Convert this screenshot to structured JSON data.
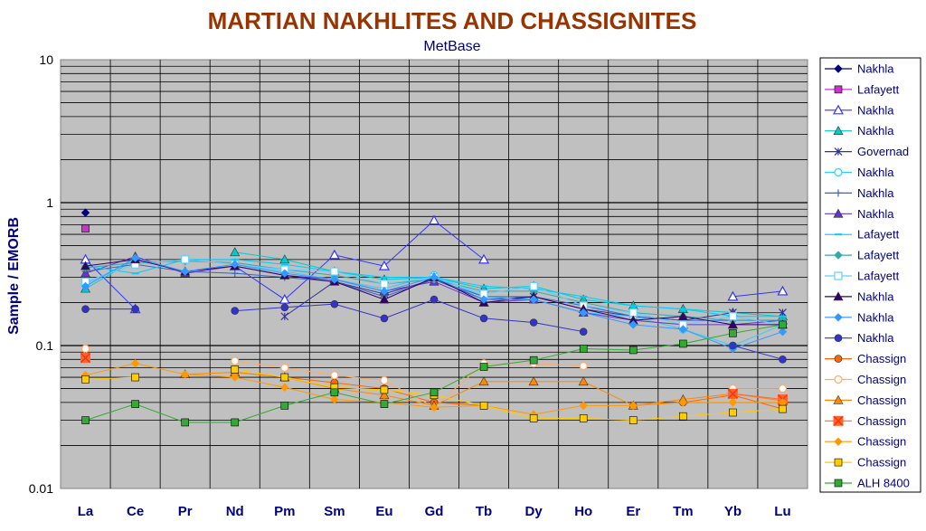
{
  "chart_data": {
    "type": "line",
    "title": "MARTIAN NAKHLITES AND CHASSIGNITES",
    "subtitle": "MetBase",
    "ylabel": "Sample / EMORB",
    "xlabel": "",
    "y_scale": "log",
    "ylim": [
      0.01,
      10
    ],
    "y_ticks": [
      "0.01",
      "0.1",
      "1",
      "10"
    ],
    "categories": [
      "La",
      "Ce",
      "Pr",
      "Nd",
      "Pm",
      "Sm",
      "Eu",
      "Gd",
      "Tb",
      "Dy",
      "Ho",
      "Er",
      "Tm",
      "Yb",
      "Lu"
    ],
    "grid": true,
    "legend_position": "right",
    "series": [
      {
        "name": "Nakhla",
        "color": "#000080",
        "marker": "diamond",
        "values": [
          0.85,
          null,
          null,
          null,
          null,
          null,
          null,
          null,
          null,
          null,
          null,
          null,
          null,
          null,
          null
        ]
      },
      {
        "name": "Lafayett",
        "color": "#cc33cc",
        "marker": "square",
        "values": [
          0.66,
          null,
          null,
          null,
          null,
          null,
          null,
          null,
          null,
          null,
          null,
          null,
          null,
          null,
          null
        ]
      },
      {
        "name": "Nakhla",
        "color": "#3333ff",
        "marker": "triangle-open",
        "values": [
          0.4,
          0.18,
          null,
          0.36,
          0.21,
          0.43,
          0.36,
          0.75,
          0.4,
          null,
          null,
          null,
          null,
          0.22,
          0.24
        ]
      },
      {
        "name": "Nakhla",
        "color": "#00cccc",
        "marker": "triangle",
        "values": [
          0.25,
          0.4,
          null,
          0.45,
          0.4,
          0.33,
          0.29,
          0.3,
          0.25,
          0.26,
          0.21,
          0.19,
          0.18,
          0.17,
          0.16
        ]
      },
      {
        "name": "Governad",
        "color": "#333399",
        "marker": "star",
        "values": [
          null,
          null,
          null,
          null,
          0.16,
          0.28,
          0.23,
          0.29,
          0.21,
          0.22,
          0.18,
          0.16,
          0.15,
          0.17,
          0.17
        ]
      },
      {
        "name": "Nakhla",
        "color": "#33ccff",
        "marker": "circle-open",
        "values": [
          0.27,
          0.4,
          null,
          0.37,
          0.33,
          0.29,
          0.25,
          0.31,
          0.22,
          0.21,
          0.17,
          0.16,
          0.13,
          0.1,
          0.14
        ]
      },
      {
        "name": "Nakhla",
        "color": "#3366cc",
        "marker": "plus",
        "values": [
          0.33,
          0.37,
          0.33,
          0.32,
          0.3,
          0.28,
          0.22,
          0.29,
          0.22,
          0.22,
          0.19,
          0.16,
          0.15,
          0.15,
          0.15
        ]
      },
      {
        "name": "Nakhla",
        "color": "#6633cc",
        "marker": "triangle",
        "values": [
          0.32,
          0.42,
          0.32,
          0.36,
          0.31,
          0.29,
          0.24,
          0.28,
          0.2,
          0.21,
          0.17,
          0.15,
          0.14,
          0.14,
          0.15
        ]
      },
      {
        "name": "Lafayett",
        "color": "#00ccff",
        "marker": "dash",
        "values": [
          0.36,
          0.32,
          0.4,
          0.4,
          0.37,
          0.33,
          0.3,
          0.3,
          0.26,
          0.25,
          0.22,
          0.19,
          0.18,
          0.16,
          0.16
        ]
      },
      {
        "name": "Lafayett",
        "color": "#33aaaa",
        "marker": "diamond",
        "values": [
          0.35,
          0.38,
          0.39,
          0.38,
          0.34,
          0.31,
          0.27,
          0.29,
          0.24,
          0.24,
          0.2,
          0.17,
          0.16,
          0.15,
          0.15
        ]
      },
      {
        "name": "Lafayett",
        "color": "#66ccff",
        "marker": "square-open",
        "values": [
          0.28,
          0.37,
          0.4,
          0.37,
          0.34,
          0.33,
          0.27,
          0.3,
          0.23,
          0.26,
          0.19,
          0.17,
          0.14,
          0.16,
          0.14
        ]
      },
      {
        "name": "Nakhla",
        "color": "#330066",
        "marker": "triangle",
        "values": [
          0.36,
          0.4,
          0.33,
          0.36,
          0.31,
          0.28,
          0.21,
          0.3,
          0.2,
          0.22,
          0.18,
          0.15,
          0.16,
          0.14,
          0.14
        ]
      },
      {
        "name": "Nakhla",
        "color": "#3399ff",
        "marker": "diamond",
        "values": [
          0.26,
          0.41,
          0.33,
          0.37,
          0.32,
          0.29,
          0.24,
          0.3,
          0.21,
          0.21,
          0.17,
          0.14,
          0.13,
          0.095,
          0.125
        ]
      },
      {
        "name": "Nakhla",
        "color": "#3333cc",
        "marker": "circle",
        "values": [
          0.18,
          0.18,
          null,
          0.175,
          0.185,
          0.195,
          0.155,
          0.21,
          0.155,
          0.145,
          0.125,
          null,
          null,
          0.1,
          0.08
        ]
      },
      {
        "name": "Chassign",
        "color": "#ff6600",
        "marker": "circle",
        "values": [
          0.085,
          null,
          null,
          0.065,
          0.06,
          0.055,
          0.05,
          0.04,
          0.038,
          null,
          null,
          0.038,
          0.04,
          0.045,
          0.036
        ]
      },
      {
        "name": "Chassign",
        "color": "#ffaa66",
        "marker": "circle-open",
        "values": [
          0.095,
          null,
          null,
          0.078,
          0.07,
          0.062,
          0.057,
          0.037,
          0.075,
          0.075,
          0.072,
          null,
          null,
          0.05,
          0.05
        ]
      },
      {
        "name": "Chassign",
        "color": "#ff8800",
        "marker": "triangle",
        "values": [
          0.083,
          null,
          0.063,
          0.065,
          0.06,
          0.05,
          0.045,
          0.038,
          0.056,
          0.056,
          0.056,
          0.038,
          0.042,
          0.046,
          0.041
        ]
      },
      {
        "name": "Chassign",
        "color": "#ff6633",
        "marker": "x-square",
        "values": [
          0.082,
          null,
          null,
          null,
          null,
          null,
          null,
          null,
          null,
          null,
          null,
          null,
          null,
          0.046,
          0.042
        ]
      },
      {
        "name": "Chassign",
        "color": "#ff9900",
        "marker": "diamond",
        "values": [
          0.062,
          0.075,
          0.063,
          0.06,
          0.051,
          0.042,
          0.04,
          0.037,
          0.038,
          0.033,
          0.038,
          0.038,
          0.04,
          0.04,
          0.04
        ]
      },
      {
        "name": "Chassign",
        "color": "#ffcc00",
        "marker": "square",
        "values": [
          0.058,
          0.06,
          null,
          0.068,
          0.06,
          0.051,
          0.049,
          0.045,
          0.038,
          0.031,
          0.031,
          0.03,
          0.032,
          0.034,
          0.036
        ]
      },
      {
        "name": "ALH 8400",
        "color": "#33aa33",
        "marker": "square",
        "values": [
          0.03,
          0.039,
          0.029,
          0.029,
          0.038,
          0.047,
          0.039,
          0.047,
          0.071,
          0.079,
          0.095,
          0.093,
          0.103,
          0.122,
          0.14
        ]
      }
    ]
  }
}
